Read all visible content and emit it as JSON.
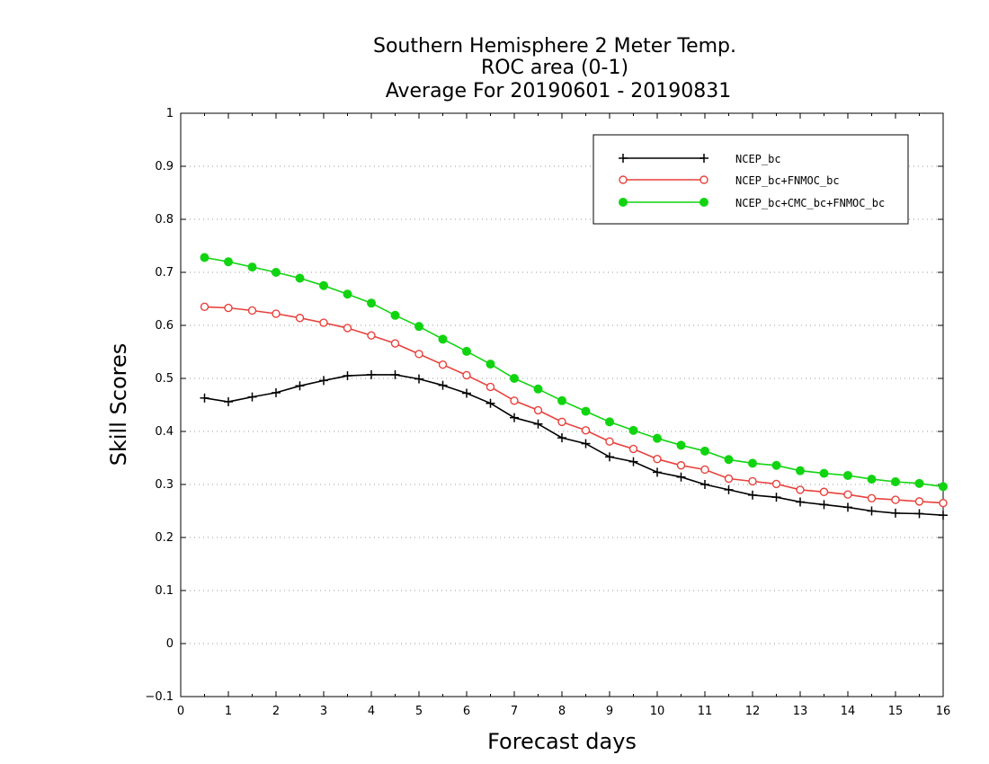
{
  "chart_data": {
    "type": "line",
    "title_lines": [
      "Southern Hemisphere 2 Meter Temp.",
      "ROC area (0-1)",
      "Average For 20190601 - 20190831"
    ],
    "xlabel": "Forecast days",
    "ylabel": "Skill Scores",
    "xlim": [
      0,
      16
    ],
    "ylim": [
      -0.1,
      1
    ],
    "x_ticks": [
      "0",
      "1",
      "2",
      "3",
      "4",
      "5",
      "6",
      "7",
      "8",
      "9",
      "10",
      "11",
      "12",
      "13",
      "14",
      "15",
      "16"
    ],
    "y_ticks": [
      "-0.1",
      "0",
      "0.1",
      "0.2",
      "0.3",
      "0.4",
      "0.5",
      "0.6",
      "0.7",
      "0.8",
      "0.9",
      "1"
    ],
    "grid": "horizontal dotted",
    "legend_position": "top-right",
    "x": [
      0.5,
      1,
      1.5,
      2,
      2.5,
      3,
      3.5,
      4,
      4.5,
      5,
      5.5,
      6,
      6.5,
      7,
      7.5,
      8,
      8.5,
      9,
      9.5,
      10,
      10.5,
      11,
      11.5,
      12,
      12.5,
      13,
      13.5,
      14,
      14.5,
      15,
      15.5,
      16
    ],
    "series": [
      {
        "name": "NCEP_bc",
        "color": "#000000",
        "marker": "plus",
        "values": [
          0.463,
          0.456,
          0.465,
          0.473,
          0.486,
          0.496,
          0.505,
          0.507,
          0.507,
          0.499,
          0.487,
          0.472,
          0.453,
          0.426,
          0.414,
          0.388,
          0.377,
          0.352,
          0.343,
          0.323,
          0.314,
          0.3,
          0.29,
          0.28,
          0.276,
          0.267,
          0.262,
          0.257,
          0.25,
          0.246,
          0.245,
          0.242
        ]
      },
      {
        "name": "NCEP_bc+FNMOC_bc",
        "color": "#e8413c",
        "marker": "open-circle",
        "values": [
          0.635,
          0.633,
          0.628,
          0.622,
          0.614,
          0.605,
          0.595,
          0.581,
          0.566,
          0.546,
          0.526,
          0.506,
          0.484,
          0.458,
          0.44,
          0.418,
          0.402,
          0.381,
          0.367,
          0.348,
          0.336,
          0.328,
          0.311,
          0.306,
          0.301,
          0.29,
          0.286,
          0.281,
          0.274,
          0.271,
          0.268,
          0.265
        ]
      },
      {
        "name": "NCEP_bc+CMC_bc+FNMOC_bc",
        "color": "#11d411",
        "marker": "filled-circle",
        "values": [
          0.728,
          0.72,
          0.71,
          0.7,
          0.689,
          0.675,
          0.659,
          0.642,
          0.619,
          0.598,
          0.574,
          0.551,
          0.527,
          0.5,
          0.48,
          0.458,
          0.438,
          0.418,
          0.402,
          0.387,
          0.374,
          0.363,
          0.347,
          0.34,
          0.336,
          0.326,
          0.321,
          0.317,
          0.31,
          0.305,
          0.302,
          0.296
        ]
      }
    ]
  }
}
